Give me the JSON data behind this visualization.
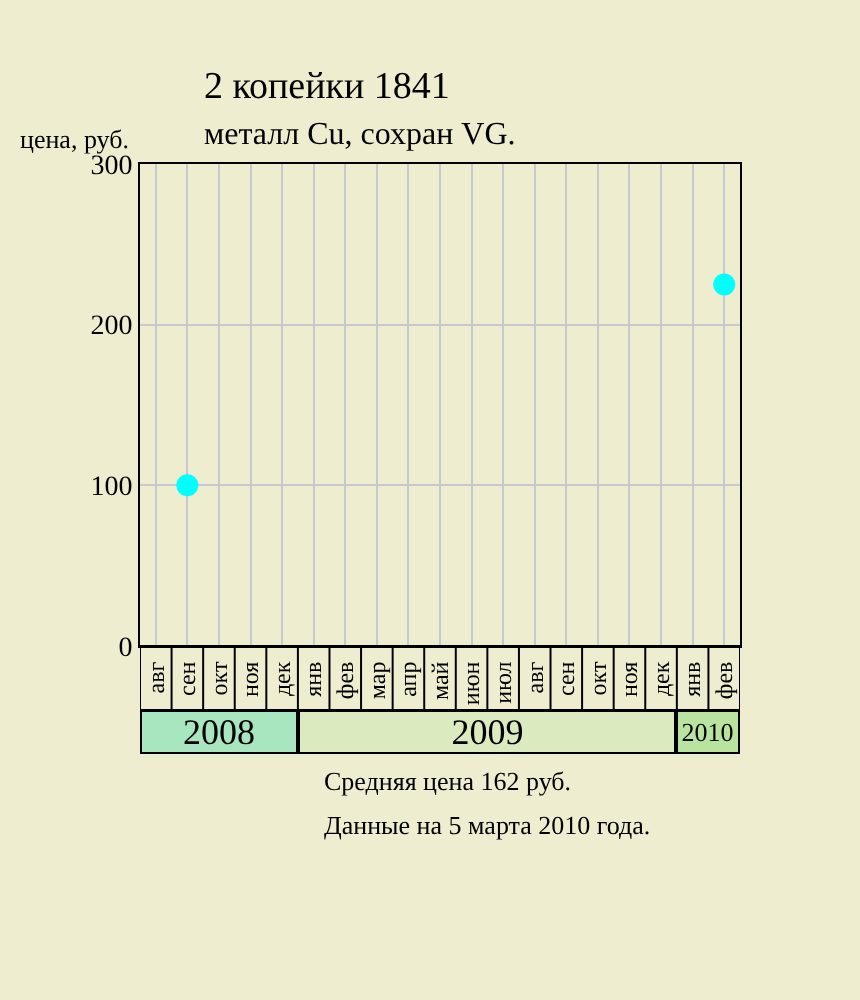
{
  "chart_data": {
    "type": "scatter",
    "title": "2 копейки 1841",
    "subtitle": "металл Cu, сохран VG.",
    "ylabel": "цена, руб.",
    "categories": [
      "авг",
      "сен",
      "окт",
      "ноя",
      "дек",
      "янв",
      "фев",
      "мар",
      "апр",
      "май",
      "июн",
      "июл",
      "авг",
      "сен",
      "окт",
      "ноя",
      "дек",
      "янв",
      "фев"
    ],
    "series": [
      {
        "color": "#00ffff",
        "values": [
          null,
          100,
          null,
          null,
          null,
          null,
          null,
          null,
          null,
          null,
          null,
          null,
          null,
          null,
          null,
          null,
          null,
          null,
          225
        ]
      }
    ],
    "ylim": [
      0,
      300
    ],
    "yticks": [
      0,
      100,
      200,
      300
    ],
    "grid": true,
    "marker": "circle",
    "annotations": [
      "2008",
      "2009",
      "2010",
      "Средняя цена 162 руб.",
      "Данные на 5 марта 2010 года."
    ]
  }
}
